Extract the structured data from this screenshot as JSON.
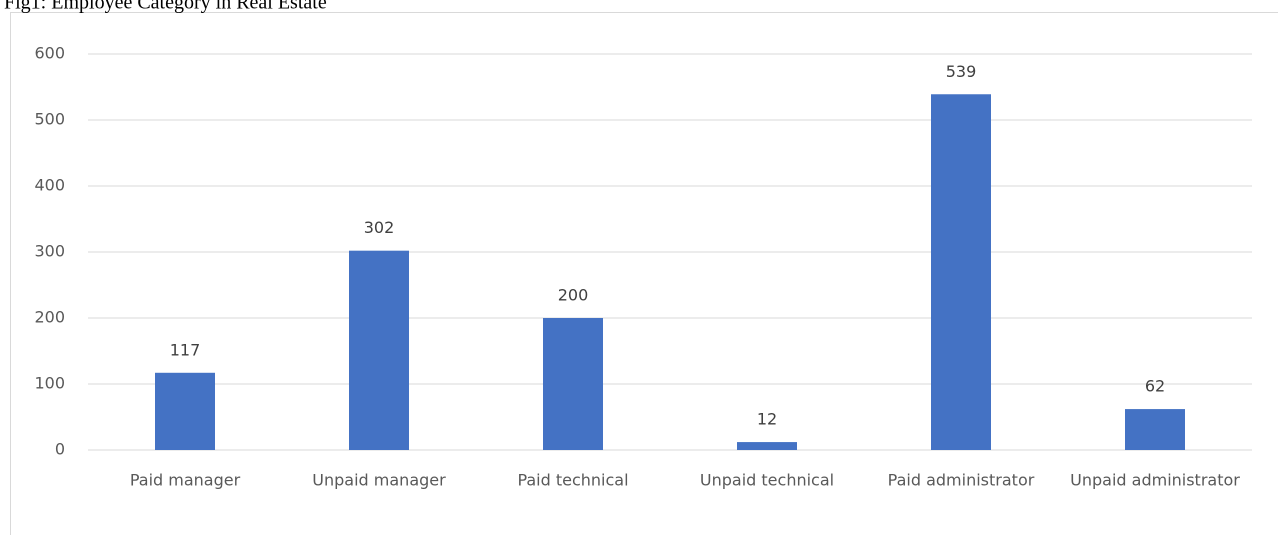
{
  "chart_data": {
    "type": "bar",
    "title": "Fig1: Employee Category in Real Estate",
    "categories": [
      "Paid manager",
      "Unpaid manager",
      "Paid technical",
      "Unpaid technical",
      "Paid administrator",
      "Unpaid administrator"
    ],
    "values": [
      117,
      302,
      200,
      12,
      539,
      62
    ],
    "color": "#4472c4",
    "ylim": [
      0,
      600
    ],
    "yticks": [
      0,
      100,
      200,
      300,
      400,
      500,
      600
    ],
    "grid": true
  }
}
